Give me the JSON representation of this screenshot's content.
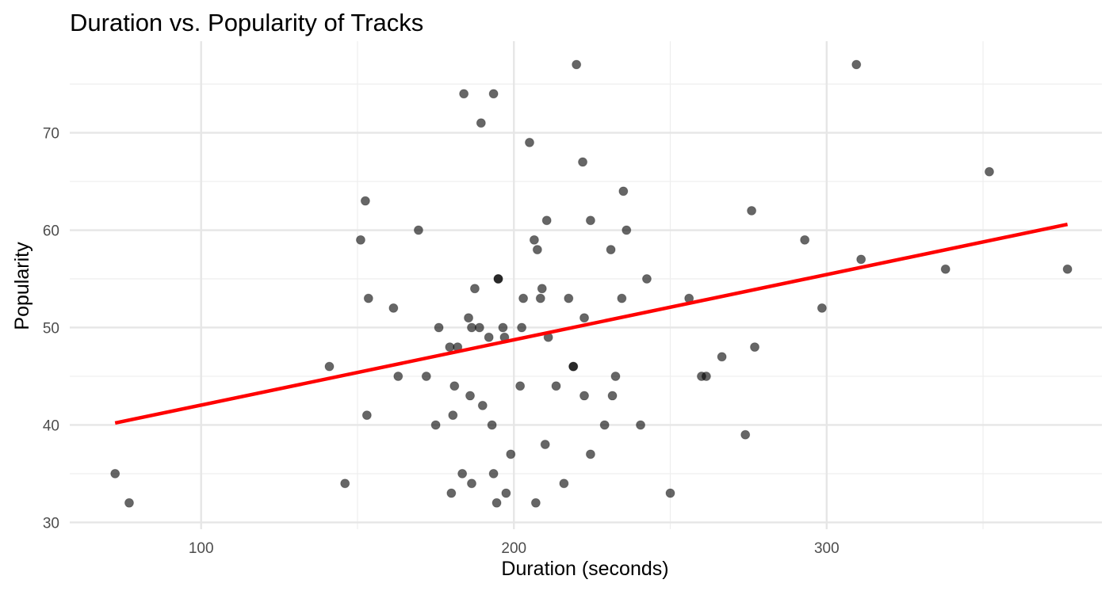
{
  "chart_data": {
    "type": "scatter",
    "title": "Duration vs. Popularity of Tracks",
    "xlabel": "Duration (seconds)",
    "ylabel": "Popularity",
    "xlim": [
      58,
      388
    ],
    "ylim": [
      29.3,
      79.4
    ],
    "x_ticks": [
      100,
      200,
      300
    ],
    "y_ticks": [
      30,
      40,
      50,
      60,
      70
    ],
    "grid": true,
    "legend": "none",
    "colors": {
      "points": "#000000",
      "fit_line": "#ff0000"
    },
    "fit_line": {
      "x": [
        72.5,
        377
      ],
      "y": [
        40.2,
        60.6
      ]
    },
    "points": [
      {
        "x": 72.5,
        "y": 35
      },
      {
        "x": 77,
        "y": 32
      },
      {
        "x": 141,
        "y": 46
      },
      {
        "x": 146,
        "y": 34
      },
      {
        "x": 151,
        "y": 59
      },
      {
        "x": 152.5,
        "y": 63
      },
      {
        "x": 153,
        "y": 41
      },
      {
        "x": 153.5,
        "y": 53
      },
      {
        "x": 161.5,
        "y": 52
      },
      {
        "x": 163,
        "y": 45
      },
      {
        "x": 169.5,
        "y": 60
      },
      {
        "x": 172,
        "y": 45
      },
      {
        "x": 175,
        "y": 40
      },
      {
        "x": 176,
        "y": 50
      },
      {
        "x": 179.5,
        "y": 48
      },
      {
        "x": 180,
        "y": 33
      },
      {
        "x": 180.5,
        "y": 41
      },
      {
        "x": 181,
        "y": 44
      },
      {
        "x": 182,
        "y": 48
      },
      {
        "x": 183.5,
        "y": 35
      },
      {
        "x": 184,
        "y": 74
      },
      {
        "x": 185.5,
        "y": 51
      },
      {
        "x": 186,
        "y": 43
      },
      {
        "x": 186.5,
        "y": 34
      },
      {
        "x": 186.5,
        "y": 50
      },
      {
        "x": 187.5,
        "y": 54
      },
      {
        "x": 189,
        "y": 50
      },
      {
        "x": 189.5,
        "y": 71
      },
      {
        "x": 190,
        "y": 42
      },
      {
        "x": 192,
        "y": 49
      },
      {
        "x": 193,
        "y": 40
      },
      {
        "x": 193.5,
        "y": 35
      },
      {
        "x": 193.5,
        "y": 74
      },
      {
        "x": 194.5,
        "y": 32
      },
      {
        "x": 195,
        "y": 55
      },
      {
        "x": 195,
        "y": 55
      },
      {
        "x": 196.5,
        "y": 50
      },
      {
        "x": 197,
        "y": 49
      },
      {
        "x": 197.5,
        "y": 33
      },
      {
        "x": 199,
        "y": 37
      },
      {
        "x": 202,
        "y": 44
      },
      {
        "x": 202.5,
        "y": 50
      },
      {
        "x": 203,
        "y": 53
      },
      {
        "x": 205,
        "y": 69
      },
      {
        "x": 206.5,
        "y": 59
      },
      {
        "x": 207,
        "y": 32
      },
      {
        "x": 207.5,
        "y": 58
      },
      {
        "x": 208.5,
        "y": 53
      },
      {
        "x": 209,
        "y": 54
      },
      {
        "x": 210,
        "y": 38
      },
      {
        "x": 210.5,
        "y": 61
      },
      {
        "x": 211,
        "y": 49
      },
      {
        "x": 213.5,
        "y": 44
      },
      {
        "x": 216,
        "y": 34
      },
      {
        "x": 217.5,
        "y": 53
      },
      {
        "x": 219,
        "y": 46
      },
      {
        "x": 219,
        "y": 46
      },
      {
        "x": 220,
        "y": 77
      },
      {
        "x": 222,
        "y": 67
      },
      {
        "x": 222.5,
        "y": 51
      },
      {
        "x": 222.5,
        "y": 43
      },
      {
        "x": 224.5,
        "y": 37
      },
      {
        "x": 224.5,
        "y": 61
      },
      {
        "x": 229,
        "y": 40
      },
      {
        "x": 231,
        "y": 58
      },
      {
        "x": 231.5,
        "y": 43
      },
      {
        "x": 232.5,
        "y": 45
      },
      {
        "x": 234.5,
        "y": 53
      },
      {
        "x": 235,
        "y": 64
      },
      {
        "x": 236,
        "y": 60
      },
      {
        "x": 240.5,
        "y": 40
      },
      {
        "x": 242.5,
        "y": 55
      },
      {
        "x": 250,
        "y": 33
      },
      {
        "x": 256,
        "y": 53
      },
      {
        "x": 260,
        "y": 45
      },
      {
        "x": 261.5,
        "y": 45
      },
      {
        "x": 266.5,
        "y": 47
      },
      {
        "x": 274,
        "y": 39
      },
      {
        "x": 276,
        "y": 62
      },
      {
        "x": 277,
        "y": 48
      },
      {
        "x": 293,
        "y": 59
      },
      {
        "x": 298.5,
        "y": 52
      },
      {
        "x": 309.5,
        "y": 77
      },
      {
        "x": 311,
        "y": 57
      },
      {
        "x": 338,
        "y": 56
      },
      {
        "x": 352,
        "y": 66
      },
      {
        "x": 377,
        "y": 56
      }
    ]
  }
}
